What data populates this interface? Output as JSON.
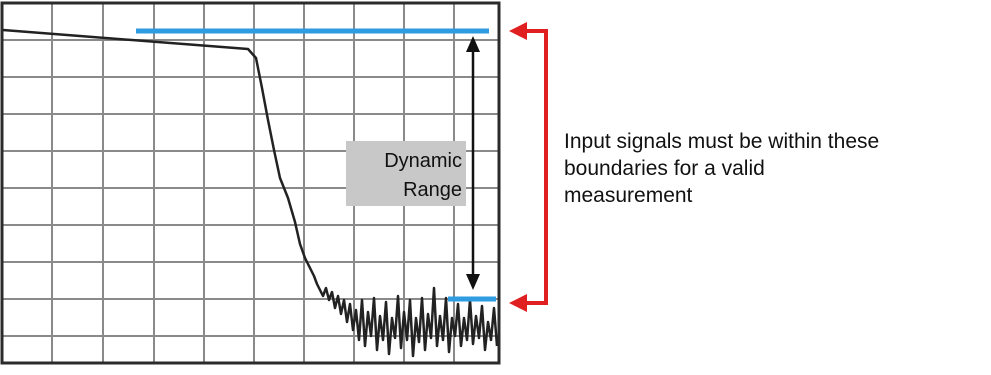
{
  "annotation": {
    "label_line1": "Dynamic",
    "label_line2": "Range",
    "note_lines": [
      "Input signals must be within these",
      "boundaries for  a valid",
      "measurement"
    ]
  },
  "colors": {
    "background": "#ffffff",
    "grid": "#8a8a8a",
    "frame": "#2b2b2b",
    "trace": "#222222",
    "limit_lines": "#2f9be0",
    "dynamic_range_arrow": "#111111",
    "label_box": "#c8c8c8",
    "boundary_bracket": "#e02020"
  }
}
